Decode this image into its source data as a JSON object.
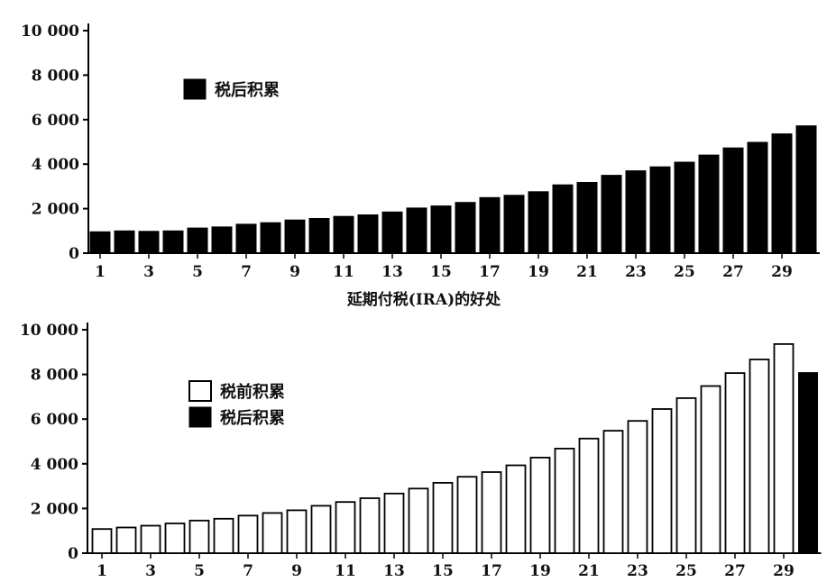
{
  "chart_data": [
    {
      "type": "bar",
      "title": "",
      "xlabel": "",
      "ylabel": "",
      "ylim": [
        0,
        10000
      ],
      "yticks": [
        "0",
        "2 000",
        "4 000",
        "6 000",
        "8 000",
        "10 000"
      ],
      "ytick_values": [
        0,
        2000,
        4000,
        6000,
        8000,
        10000
      ],
      "xtick_labels": [
        "1",
        "3",
        "5",
        "7",
        "9",
        "11",
        "13",
        "15",
        "17",
        "19",
        "21",
        "23",
        "25",
        "27",
        "29"
      ],
      "x": [
        1,
        2,
        3,
        4,
        5,
        6,
        7,
        8,
        9,
        10,
        11,
        12,
        13,
        14,
        15,
        16,
        17,
        18,
        19,
        20,
        21,
        22,
        23,
        24,
        25,
        26,
        27,
        28,
        29,
        30
      ],
      "legend_position": "upper-left",
      "series": [
        {
          "name": "税后积累",
          "color": "#000000",
          "values": [
            960,
            1000,
            980,
            1000,
            1130,
            1180,
            1300,
            1370,
            1490,
            1560,
            1650,
            1720,
            1850,
            2030,
            2120,
            2280,
            2500,
            2600,
            2760,
            3070,
            3180,
            3500,
            3700,
            3880,
            4090,
            4410,
            4730,
            4980,
            5360,
            5720
          ]
        }
      ]
    },
    {
      "type": "bar",
      "title": "延期付税(IRA)的好处",
      "xlabel": "",
      "ylabel": "",
      "ylim": [
        0,
        10000
      ],
      "yticks": [
        "0",
        "2 000",
        "4 000",
        "6 000",
        "8 000",
        "10 000"
      ],
      "ytick_values": [
        0,
        2000,
        4000,
        6000,
        8000,
        10000
      ],
      "xtick_labels": [
        "1",
        "3",
        "5",
        "7",
        "9",
        "11",
        "13",
        "15",
        "17",
        "19",
        "21",
        "23",
        "25",
        "27",
        "29"
      ],
      "x": [
        1,
        2,
        3,
        4,
        5,
        6,
        7,
        8,
        9,
        10,
        11,
        12,
        13,
        14,
        15,
        16,
        17,
        18,
        19,
        20,
        21,
        22,
        23,
        24,
        25,
        26,
        27,
        28,
        29,
        30
      ],
      "legend_position": "upper-left",
      "series": [
        {
          "name": "税前积累",
          "color": "#ffffff",
          "values": [
            1080,
            1150,
            1230,
            1330,
            1460,
            1540,
            1680,
            1800,
            1920,
            2120,
            2290,
            2460,
            2670,
            2890,
            3150,
            3420,
            3630,
            3930,
            4280,
            4680,
            5130,
            5480,
            5920,
            6450,
            6940,
            7480,
            8060,
            8670,
            9360,
            null
          ]
        },
        {
          "name": "税后积累",
          "color": "#000000",
          "values": [
            null,
            null,
            null,
            null,
            null,
            null,
            null,
            null,
            null,
            null,
            null,
            null,
            null,
            null,
            null,
            null,
            null,
            null,
            null,
            null,
            null,
            null,
            null,
            null,
            null,
            null,
            null,
            null,
            null,
            8080
          ]
        }
      ]
    }
  ]
}
